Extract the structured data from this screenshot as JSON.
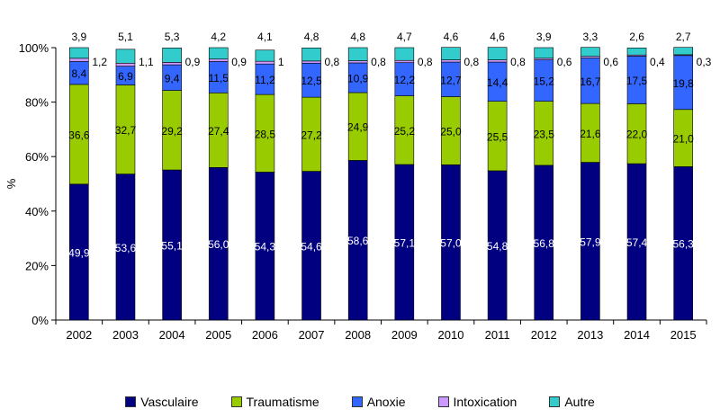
{
  "chart_data": {
    "type": "bar",
    "stacked": true,
    "categories": [
      "2002",
      "2003",
      "2004",
      "2005",
      "2006",
      "2007",
      "2008",
      "2009",
      "2010",
      "2011",
      "2012",
      "2013",
      "2014",
      "2015"
    ],
    "ylabel": "%",
    "ylim": [
      0,
      100
    ],
    "yticks": [
      "0%",
      "20%",
      "40%",
      "60%",
      "80%",
      "100%"
    ],
    "series": [
      {
        "name": "Vasculaire",
        "color": "#000080",
        "values": [
          49.9,
          53.6,
          55.1,
          56.0,
          54.3,
          54.6,
          58.6,
          57.1,
          57.0,
          54.8,
          56.8,
          57.9,
          57.4,
          56.3
        ],
        "labels": [
          "49,9",
          "53,6",
          "55,1",
          "56,0",
          "54,3",
          "54,6",
          "58,6",
          "57,1",
          "57,0",
          "54,8",
          "56,8",
          "57,9",
          "57,4",
          "56,3"
        ]
      },
      {
        "name": "Traumatisme",
        "color": "#99cc00",
        "values": [
          36.6,
          32.7,
          29.2,
          27.4,
          28.5,
          27.2,
          24.9,
          25.2,
          25.0,
          25.5,
          23.5,
          21.6,
          22.0,
          21.0
        ],
        "labels": [
          "36,6",
          "32,7",
          "29,2",
          "27,4",
          "28,5",
          "27,2",
          "24,9",
          "25,2",
          "25,0",
          "25,5",
          "23,5",
          "21,6",
          "22,0",
          "21,0"
        ]
      },
      {
        "name": "Anoxie",
        "color": "#3366ff",
        "values": [
          8.4,
          6.9,
          9.4,
          11.5,
          11.2,
          12.5,
          10.9,
          12.2,
          12.7,
          14.4,
          15.2,
          16.7,
          17.5,
          19.8
        ],
        "labels": [
          "8,4",
          "6,9",
          "9,4",
          "11,5",
          "11,2",
          "12,5",
          "10,9",
          "12,2",
          "12,7",
          "14,4",
          "15,2",
          "16,7",
          "17,5",
          "19,8"
        ]
      },
      {
        "name": "Intoxication",
        "color": "#cc99ff",
        "values": [
          1.2,
          1.1,
          0.9,
          0.9,
          1.0,
          0.8,
          0.8,
          0.8,
          0.8,
          0.8,
          0.6,
          0.6,
          0.4,
          0.3
        ],
        "labels": [
          "1,2",
          "1,1",
          "0,9",
          "0,9",
          "1",
          "0,8",
          "0,8",
          "0,8",
          "0,8",
          "0,8",
          "0,6",
          "0,6",
          "0,4",
          "0,3"
        ]
      },
      {
        "name": "Autre",
        "color": "#33cccc",
        "values": [
          3.9,
          5.1,
          5.3,
          4.2,
          4.1,
          4.8,
          4.8,
          4.7,
          4.6,
          4.6,
          3.9,
          3.3,
          2.6,
          2.7
        ],
        "labels": [
          "3,9",
          "5,1",
          "5,3",
          "4,2",
          "4,1",
          "4,8",
          "4,8",
          "4,7",
          "4,6",
          "4,6",
          "3,9",
          "3,3",
          "2,6",
          "2,7"
        ]
      }
    ],
    "legend": {
      "position": "bottom"
    }
  }
}
